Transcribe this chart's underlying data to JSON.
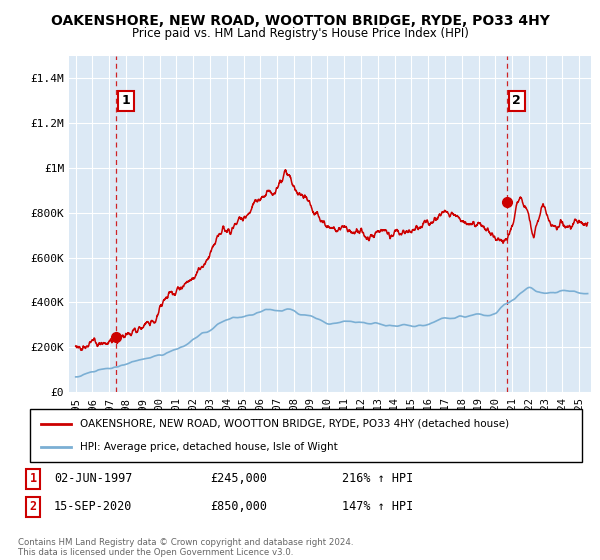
{
  "title": "OAKENSHORE, NEW ROAD, WOOTTON BRIDGE, RYDE, PO33 4HY",
  "subtitle": "Price paid vs. HM Land Registry's House Price Index (HPI)",
  "legend_line1": "OAKENSHORE, NEW ROAD, WOOTTON BRIDGE, RYDE, PO33 4HY (detached house)",
  "legend_line2": "HPI: Average price, detached house, Isle of Wight",
  "annotation1_label": "1",
  "annotation1_date": "02-JUN-1997",
  "annotation1_price": "£245,000",
  "annotation1_hpi": "216% ↑ HPI",
  "annotation2_label": "2",
  "annotation2_date": "15-SEP-2020",
  "annotation2_price": "£850,000",
  "annotation2_hpi": "147% ↑ HPI",
  "footnote": "Contains HM Land Registry data © Crown copyright and database right 2024.\nThis data is licensed under the Open Government Licence v3.0.",
  "ylim": [
    0,
    1500000
  ],
  "yticks": [
    0,
    200000,
    400000,
    600000,
    800000,
    1000000,
    1200000,
    1400000
  ],
  "ytick_labels": [
    "£0",
    "£200K",
    "£400K",
    "£600K",
    "£800K",
    "£1M",
    "£1.2M",
    "£1.4M"
  ],
  "house_color": "#cc0000",
  "hpi_color": "#7bafd4",
  "background_color": "#ffffff",
  "plot_bg_color": "#dce9f5",
  "grid_color": "#ffffff",
  "marker1_x": 1997.42,
  "marker1_y": 245000,
  "marker2_x": 2020.71,
  "marker2_y": 850000,
  "dashed_line1_x": 1997.42,
  "dashed_line2_x": 2020.71,
  "xlim_left": 1994.6,
  "xlim_right": 2025.7
}
